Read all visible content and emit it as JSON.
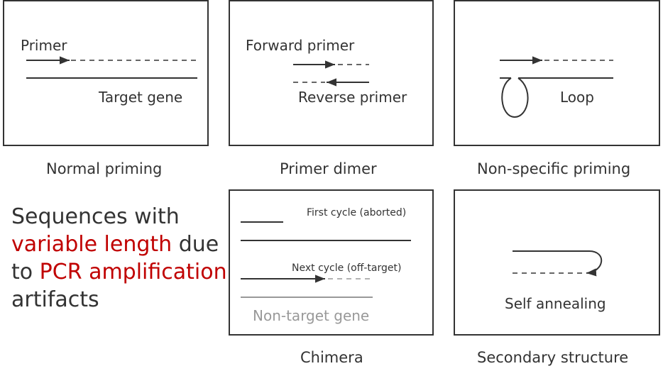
{
  "panels": {
    "normal": {
      "caption": "Normal priming",
      "primer_label": "Primer",
      "target_label": "Target gene"
    },
    "dimer": {
      "caption": "Primer dimer",
      "forward_label": "Forward primer",
      "reverse_label": "Reverse primer"
    },
    "nonspecific": {
      "caption": "Non-specific priming",
      "loop_label": "Loop"
    },
    "chimera": {
      "caption": "Chimera",
      "first_cycle_label": "First cycle (aborted)",
      "next_cycle_label": "Next cycle (off-target)",
      "nontarget_label": "Non-target gene"
    },
    "secondary": {
      "caption": "Secondary structure",
      "self_annealing_label": "Self annealing"
    }
  },
  "side_text": {
    "line1": "Sequences with",
    "line2_highlight": "variable length",
    "line2_rest": " due",
    "line3_prefix": "to ",
    "line3_highlight": "PCR amplification",
    "line4": "artifacts"
  },
  "colors": {
    "ink": "#333333",
    "highlight": "#c00000",
    "muted": "#999999"
  }
}
